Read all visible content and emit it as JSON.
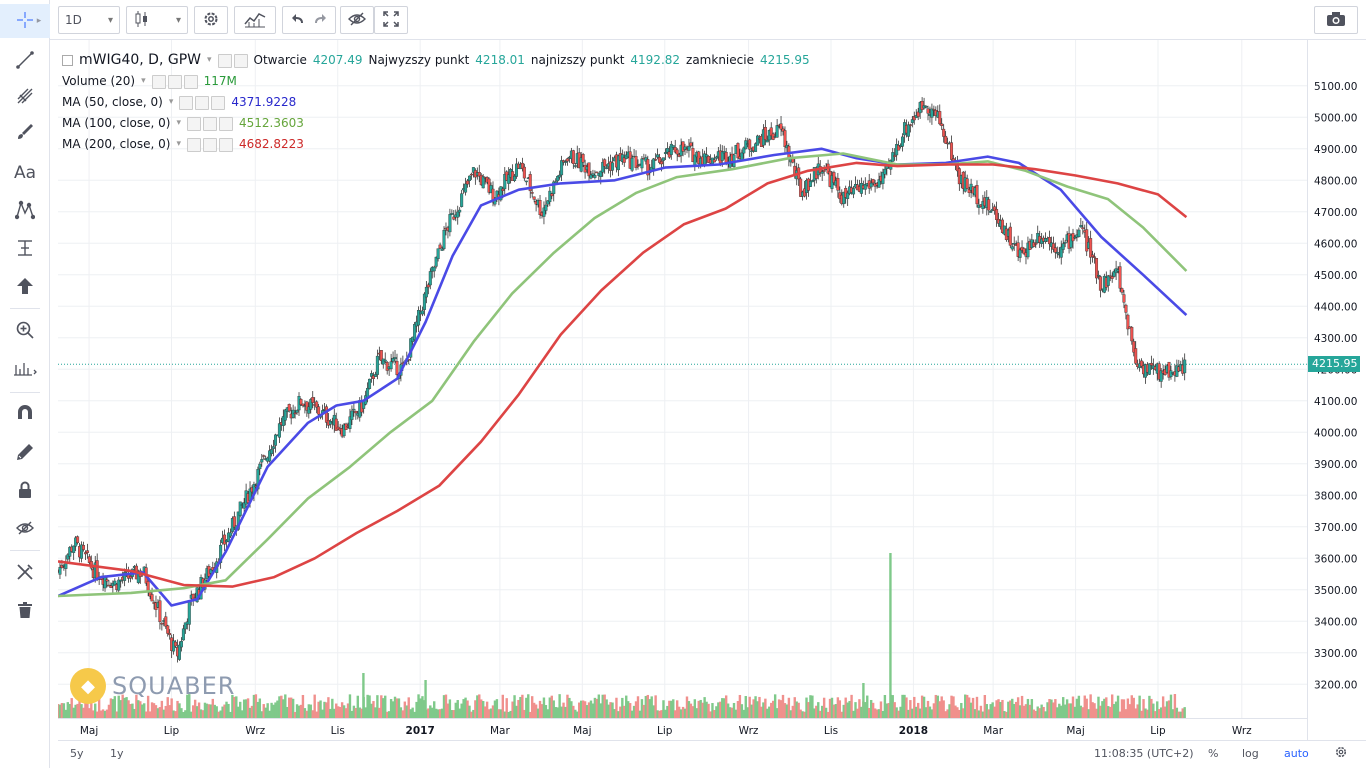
{
  "toolbar": {
    "interval": "1D",
    "interval_caret": "▾",
    "chart_type_caret": "▾"
  },
  "legend": {
    "symbol": "mWIG40, D, GPW",
    "open_label": "Otwarcie",
    "open_value": "4207.49",
    "high_label": "Najwyzszy punkt",
    "high_value": "4218.01",
    "low_label": "najnizszy punkt",
    "low_value": "4192.82",
    "close_label": "zamkniecie",
    "close_value": "4215.95",
    "indicators": [
      {
        "label": "Volume (20)",
        "value": "117M",
        "color": "#26a69a"
      },
      {
        "label": "MA (50, close, 0)",
        "value": "4371.9228",
        "color": "#2828cc"
      },
      {
        "label": "MA (100, close, 0)",
        "value": "4512.3603",
        "color": "#65a53b"
      },
      {
        "label": "MA (200, close, 0)",
        "value": "4682.8223",
        "color": "#cc2828"
      }
    ]
  },
  "price_scale": {
    "ticks": [
      "5100.00",
      "5000.00",
      "4900.00",
      "4800.00",
      "4700.00",
      "4600.00",
      "4500.00",
      "4400.00",
      "4300.00",
      "4200.00",
      "4100.00",
      "4000.00",
      "3900.00",
      "3800.00",
      "3700.00",
      "3600.00",
      "3500.00",
      "3400.00",
      "3300.00",
      "3200.00"
    ],
    "last_price": "4215.95"
  },
  "time_scale": {
    "labels": [
      "Maj",
      "Lip",
      "Wrz",
      "Lis",
      "2017",
      "Mar",
      "Maj",
      "Lip",
      "Wrz",
      "Lis",
      "2018",
      "Mar",
      "Maj",
      "Lip",
      "Wrz"
    ]
  },
  "bottom_bar": {
    "range_5y": "5y",
    "range_1y": "1y",
    "clock": "11:08:35 (UTC+2)",
    "percent": "%",
    "log": "log",
    "auto": "auto"
  },
  "watermark": "SQUABER",
  "colors": {
    "up": "#26a69a",
    "down": "#ef5350",
    "ma50": "#4a4ae6",
    "ma100": "#8fc47a",
    "ma200": "#dd4444"
  },
  "chart_data": {
    "type": "line",
    "ylim": [
      3150,
      5150
    ],
    "series": [
      {
        "name": "MA (50, close, 0)",
        "points": [
          [
            "2016-04-08",
            3480
          ],
          [
            "2016-05-10",
            3540
          ],
          [
            "2016-06-10",
            3555
          ],
          [
            "2016-07-01",
            3450
          ],
          [
            "2016-07-20",
            3470
          ],
          [
            "2016-08-10",
            3620
          ],
          [
            "2016-09-10",
            3890
          ],
          [
            "2016-10-10",
            4030
          ],
          [
            "2016-10-31",
            4085
          ],
          [
            "2016-11-20",
            4100
          ],
          [
            "2016-12-15",
            4170
          ],
          [
            "2017-01-05",
            4350
          ],
          [
            "2017-01-25",
            4560
          ],
          [
            "2017-02-15",
            4720
          ],
          [
            "2017-03-15",
            4770
          ],
          [
            "2017-04-15",
            4790
          ],
          [
            "2017-05-25",
            4800
          ],
          [
            "2017-07-01",
            4840
          ],
          [
            "2017-08-10",
            4850
          ],
          [
            "2017-09-20",
            4880
          ],
          [
            "2017-10-25",
            4900
          ],
          [
            "2017-11-20",
            4870
          ],
          [
            "2017-12-20",
            4850
          ],
          [
            "2018-01-25",
            4855
          ],
          [
            "2018-02-25",
            4875
          ],
          [
            "2018-03-20",
            4855
          ],
          [
            "2018-04-20",
            4770
          ],
          [
            "2018-05-20",
            4620
          ],
          [
            "2018-06-20",
            4500
          ],
          [
            "2018-07-22",
            4372
          ]
        ]
      },
      {
        "name": "MA (100, close, 0)",
        "points": [
          [
            "2016-04-08",
            3480
          ],
          [
            "2016-06-01",
            3490
          ],
          [
            "2016-07-10",
            3505
          ],
          [
            "2016-08-10",
            3530
          ],
          [
            "2016-09-10",
            3660
          ],
          [
            "2016-10-10",
            3790
          ],
          [
            "2016-11-10",
            3890
          ],
          [
            "2016-12-10",
            4000
          ],
          [
            "2017-01-10",
            4100
          ],
          [
            "2017-02-10",
            4290
          ],
          [
            "2017-03-10",
            4440
          ],
          [
            "2017-04-10",
            4570
          ],
          [
            "2017-05-10",
            4680
          ],
          [
            "2017-06-10",
            4760
          ],
          [
            "2017-07-10",
            4810
          ],
          [
            "2017-08-20",
            4835
          ],
          [
            "2017-10-01",
            4870
          ],
          [
            "2017-11-10",
            4885
          ],
          [
            "2017-12-20",
            4850
          ],
          [
            "2018-01-25",
            4850
          ],
          [
            "2018-02-25",
            4860
          ],
          [
            "2018-03-25",
            4830
          ],
          [
            "2018-04-25",
            4780
          ],
          [
            "2018-05-25",
            4740
          ],
          [
            "2018-06-20",
            4650
          ],
          [
            "2018-07-22",
            4512
          ]
        ]
      },
      {
        "name": "MA (200, close, 0)",
        "points": [
          [
            "2016-04-08",
            3590
          ],
          [
            "2016-06-01",
            3560
          ],
          [
            "2016-07-10",
            3515
          ],
          [
            "2016-08-15",
            3510
          ],
          [
            "2016-09-15",
            3540
          ],
          [
            "2016-10-15",
            3600
          ],
          [
            "2016-11-15",
            3680
          ],
          [
            "2016-12-15",
            3750
          ],
          [
            "2017-01-15",
            3830
          ],
          [
            "2017-02-15",
            3970
          ],
          [
            "2017-03-15",
            4120
          ],
          [
            "2017-04-15",
            4310
          ],
          [
            "2017-05-15",
            4450
          ],
          [
            "2017-06-15",
            4570
          ],
          [
            "2017-07-15",
            4660
          ],
          [
            "2017-08-15",
            4710
          ],
          [
            "2017-09-15",
            4790
          ],
          [
            "2017-10-15",
            4830
          ],
          [
            "2017-11-20",
            4855
          ],
          [
            "2017-12-20",
            4845
          ],
          [
            "2018-01-25",
            4850
          ],
          [
            "2018-03-01",
            4850
          ],
          [
            "2018-04-01",
            4835
          ],
          [
            "2018-05-01",
            4815
          ],
          [
            "2018-06-01",
            4790
          ],
          [
            "2018-07-01",
            4755
          ],
          [
            "2018-07-22",
            4683
          ]
        ]
      },
      {
        "name": "close",
        "points": [
          [
            "2016-04-08",
            3560
          ],
          [
            "2016-04-20",
            3650
          ],
          [
            "2016-05-05",
            3560
          ],
          [
            "2016-05-20",
            3520
          ],
          [
            "2016-06-10",
            3560
          ],
          [
            "2016-06-24",
            3400
          ],
          [
            "2016-07-05",
            3290
          ],
          [
            "2016-07-15",
            3460
          ],
          [
            "2016-08-01",
            3580
          ],
          [
            "2016-08-15",
            3700
          ],
          [
            "2016-09-01",
            3850
          ],
          [
            "2016-09-20",
            4030
          ],
          [
            "2016-10-05",
            4100
          ],
          [
            "2016-10-20",
            4060
          ],
          [
            "2016-11-05",
            4010
          ],
          [
            "2016-11-20",
            4090
          ],
          [
            "2016-12-01",
            4230
          ],
          [
            "2016-12-20",
            4200
          ],
          [
            "2017-01-05",
            4440
          ],
          [
            "2017-01-20",
            4640
          ],
          [
            "2017-02-10",
            4830
          ],
          [
            "2017-02-25",
            4750
          ],
          [
            "2017-03-15",
            4850
          ],
          [
            "2017-04-01",
            4700
          ],
          [
            "2017-04-20",
            4880
          ],
          [
            "2017-05-10",
            4830
          ],
          [
            "2017-06-01",
            4870
          ],
          [
            "2017-06-20",
            4840
          ],
          [
            "2017-07-10",
            4900
          ],
          [
            "2017-08-01",
            4870
          ],
          [
            "2017-08-20",
            4880
          ],
          [
            "2017-09-10",
            4930
          ],
          [
            "2017-09-25",
            4960
          ],
          [
            "2017-10-10",
            4760
          ],
          [
            "2017-10-25",
            4850
          ],
          [
            "2017-11-10",
            4740
          ],
          [
            "2017-11-25",
            4780
          ],
          [
            "2017-12-10",
            4800
          ],
          [
            "2017-12-25",
            4960
          ],
          [
            "2018-01-10",
            5050
          ],
          [
            "2018-01-20",
            4990
          ],
          [
            "2018-02-05",
            4800
          ],
          [
            "2018-02-20",
            4740
          ],
          [
            "2018-03-05",
            4680
          ],
          [
            "2018-03-20",
            4560
          ],
          [
            "2018-04-05",
            4630
          ],
          [
            "2018-04-20",
            4580
          ],
          [
            "2018-05-05",
            4650
          ],
          [
            "2018-05-20",
            4470
          ],
          [
            "2018-06-01",
            4510
          ],
          [
            "2018-06-15",
            4220
          ],
          [
            "2018-07-01",
            4190
          ],
          [
            "2018-07-15",
            4200
          ],
          [
            "2018-07-22",
            4216
          ]
        ]
      }
    ]
  }
}
